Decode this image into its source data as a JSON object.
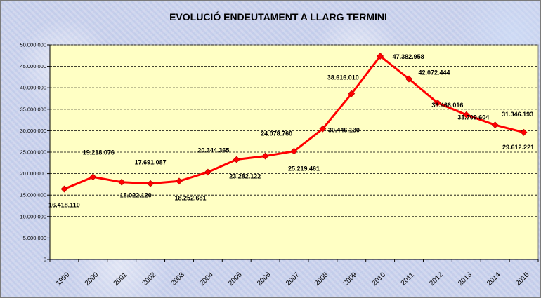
{
  "chart_data": {
    "type": "line",
    "title": "EVOLUCIÓ ENDEUTAMENT A LLARG TERMINI",
    "xlabel": "",
    "ylabel": "",
    "ylim": [
      0,
      50000000
    ],
    "yticks": [
      0,
      5000000,
      10000000,
      15000000,
      20000000,
      25000000,
      30000000,
      35000000,
      40000000,
      45000000,
      50000000
    ],
    "ytick_labels": [
      "0",
      "5.000.000",
      "10.000.000",
      "15.000.000",
      "20.000.000",
      "25.000.000",
      "30.000.000",
      "35.000.000",
      "40.000.000",
      "45.000.000",
      "50.000.000"
    ],
    "grid": "horizontal-dashed",
    "categories": [
      "1999",
      "2000",
      "2001",
      "2002",
      "2003",
      "2004",
      "2005",
      "2006",
      "2007",
      "2008",
      "2009",
      "2010",
      "2011",
      "2012",
      "2013",
      "2014",
      "2015"
    ],
    "series": [
      {
        "values": [
          16418110,
          19218076,
          18022120,
          17691087,
          18252681,
          20344365,
          23282122,
          24078760,
          25219461,
          30446130,
          38616010,
          47382958,
          42072444,
          36466016,
          33709604,
          31346193,
          29612221
        ],
        "labels": [
          "16.418.110",
          "19.218.076",
          "18.022.120",
          "17.691.087",
          "18.252.681",
          "20.344.365",
          "23.282.122",
          "24.078.760",
          "25.219.461",
          "30.446.130",
          "38.616.010",
          "47.382.958",
          "42.072.444",
          "36.466.016",
          "33.709.604",
          "31.346.193",
          "29.612.221"
        ],
        "color": "#ff0000"
      }
    ],
    "colors": {
      "plot_background": "#ffffc4",
      "line": "#ff0000",
      "grid": "#000000"
    }
  }
}
